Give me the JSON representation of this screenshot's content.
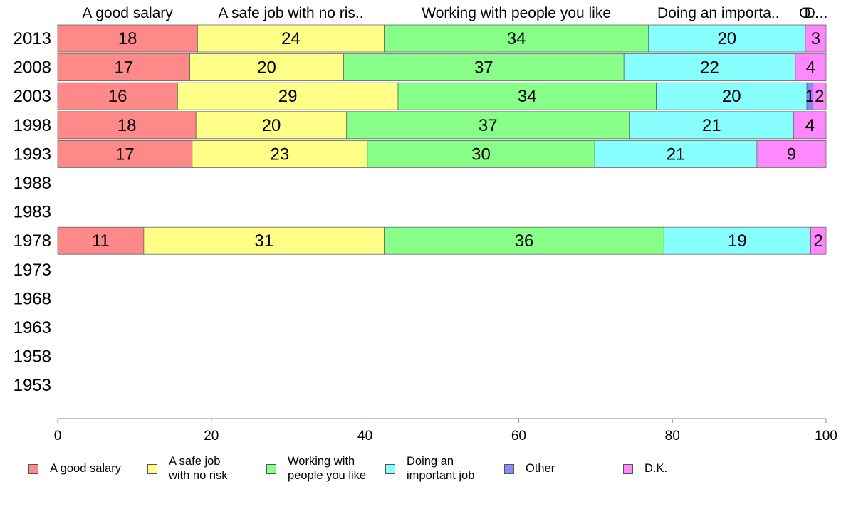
{
  "chart_data": {
    "type": "bar",
    "orientation": "horizontal",
    "stacked": true,
    "top_labels": [
      "A good salary",
      "A safe job with no ris..",
      "Working with people you like",
      "Doing an importa..",
      "O..",
      "D..."
    ],
    "categories": [
      "2013",
      "2008",
      "2003",
      "1998",
      "1993",
      "1988",
      "1983",
      "1978",
      "1973",
      "1968",
      "1963",
      "1958",
      "1953"
    ],
    "series": [
      {
        "name": "A good salary",
        "color": "#ff8888",
        "values": [
          18.2,
          17.2,
          15.6,
          18,
          17.5,
          null,
          null,
          11.2,
          null,
          null,
          null,
          null,
          null
        ],
        "labels": [
          "18",
          "17",
          "16",
          "18",
          "17",
          "",
          "",
          "11",
          "",
          "",
          "",
          "",
          ""
        ]
      },
      {
        "name": "A safe job with no risk",
        "color": "#ffff88",
        "values": [
          24.3,
          20,
          28.7,
          19.6,
          22.8,
          null,
          null,
          31.3,
          null,
          null,
          null,
          null,
          null
        ],
        "labels": [
          "24",
          "20",
          "29",
          "20",
          "23",
          "",
          "",
          "31",
          "",
          "",
          "",
          "",
          ""
        ]
      },
      {
        "name": "Working with people you like",
        "color": "#88ff88",
        "values": [
          34.4,
          36.5,
          33.6,
          36.8,
          29.6,
          null,
          null,
          36.4,
          null,
          null,
          null,
          null,
          null
        ],
        "labels": [
          "34",
          "37",
          "34",
          "37",
          "30",
          "",
          "",
          "36",
          "",
          "",
          "",
          "",
          ""
        ]
      },
      {
        "name": "Doing an important job",
        "color": "#88ffff",
        "values": [
          20.4,
          22.3,
          19.6,
          21.4,
          21.1,
          null,
          null,
          19.1,
          null,
          null,
          null,
          null,
          null
        ],
        "labels": [
          "20",
          "22",
          "20",
          "21",
          "21",
          "",
          "",
          "19",
          "",
          "",
          "",
          "",
          ""
        ]
      },
      {
        "name": "Other",
        "color": "#8888ff",
        "values": [
          0,
          0,
          0.8,
          0,
          0,
          null,
          null,
          0,
          null,
          null,
          null,
          null,
          null
        ],
        "labels": [
          "",
          "",
          "1",
          "",
          "",
          "",
          "",
          "",
          "",
          "",
          "",
          "",
          ""
        ]
      },
      {
        "name": "D.K.",
        "color": "#ff88ff",
        "values": [
          2.7,
          4,
          1.7,
          4.2,
          9,
          null,
          null,
          2,
          null,
          null,
          null,
          null,
          null
        ],
        "labels": [
          "3",
          "4",
          "2",
          "4",
          "9",
          "",
          "",
          "2",
          "",
          "",
          "",
          "",
          ""
        ]
      }
    ],
    "xlim": [
      0,
      100
    ],
    "xticks": [
      "0",
      "20",
      "40",
      "60",
      "80",
      "100"
    ],
    "grid": false,
    "legend_position": "bottom"
  },
  "legend": [
    {
      "label": "A good salary",
      "color": "#ff8888"
    },
    {
      "label": "A safe job\nwith no risk",
      "color": "#ffff88"
    },
    {
      "label": "Working with\npeople you like",
      "color": "#88ff88"
    },
    {
      "label": "Doing an\nimportant job",
      "color": "#88ffff"
    },
    {
      "label": "Other",
      "color": "#8888ff"
    },
    {
      "label": "D.K.",
      "color": "#ff88ff"
    }
  ]
}
